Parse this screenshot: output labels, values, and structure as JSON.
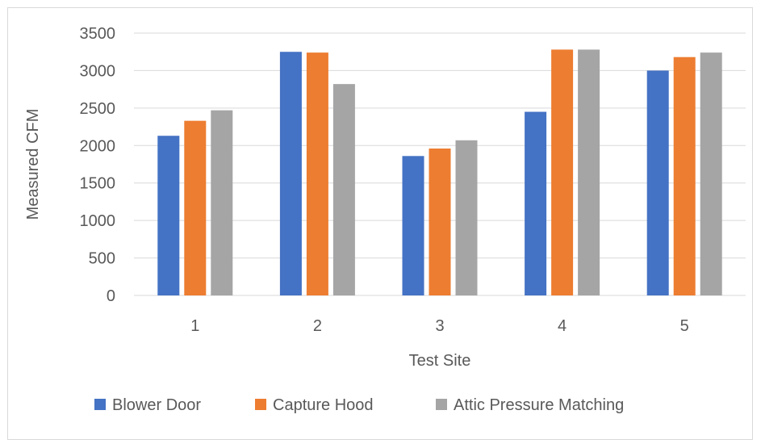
{
  "chart_data": {
    "type": "bar",
    "title": "",
    "xlabel": "Test Site",
    "ylabel": "Measured CFM",
    "categories": [
      "1",
      "2",
      "3",
      "4",
      "5"
    ],
    "ylim": [
      0,
      3500
    ],
    "yticks": [
      0,
      500,
      1000,
      1500,
      2000,
      2500,
      3000,
      3500
    ],
    "grid": true,
    "legend_position": "bottom",
    "series": [
      {
        "name": "Blower Door",
        "color": "#4472c4",
        "values": [
          2130,
          3250,
          1860,
          2450,
          3000
        ]
      },
      {
        "name": "Capture Hood",
        "color": "#ed7d31",
        "values": [
          2330,
          3240,
          1960,
          3280,
          3180
        ]
      },
      {
        "name": "Attic Pressure Matching",
        "color": "#a5a5a5",
        "values": [
          2470,
          2820,
          2070,
          3280,
          3240
        ]
      }
    ]
  }
}
